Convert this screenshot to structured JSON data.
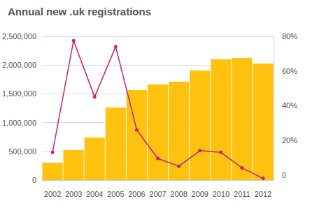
{
  "chart_data": {
    "type": "bar",
    "title": "Annual new .uk registrations",
    "categories": [
      "2002",
      "2003",
      "2004",
      "2005",
      "2006",
      "2007",
      "2008",
      "2009",
      "2010",
      "2011",
      "2012"
    ],
    "series": [
      {
        "type": "bar",
        "color": "#ffc20e",
        "values": [
          303000,
          522000,
          740000,
          1262000,
          1565000,
          1663000,
          1711000,
          1905000,
          2099000,
          2124000,
          2027000
        ]
      },
      {
        "type": "line",
        "axis": "y2",
        "color": "#c8217f",
        "marker": "circle",
        "line_style": "solid",
        "values": [
          13,
          77.5,
          45,
          74,
          26,
          9.5,
          5,
          14,
          13,
          4,
          -2
        ]
      }
    ],
    "ylim": [
      0,
      2500000
    ],
    "yticks": [
      0,
      {
        "value": 500000,
        "label": "500,000"
      },
      {
        "value": 1000000,
        "label": "1,000,000"
      },
      {
        "value": 1500000,
        "label": "1,500,000"
      },
      {
        "value": 2000000,
        "label": "2,000,000"
      },
      {
        "value": 2500000,
        "label": "2,500,000"
      }
    ],
    "y2lim": [
      -3,
      80
    ],
    "y2ticks": [
      0,
      {
        "value": 20,
        "label": "20%"
      },
      {
        "value": 40,
        "label": "40%"
      },
      {
        "value": 60,
        "label": "60%"
      },
      {
        "value": 80,
        "label": "80%"
      }
    ],
    "grid": true
  }
}
